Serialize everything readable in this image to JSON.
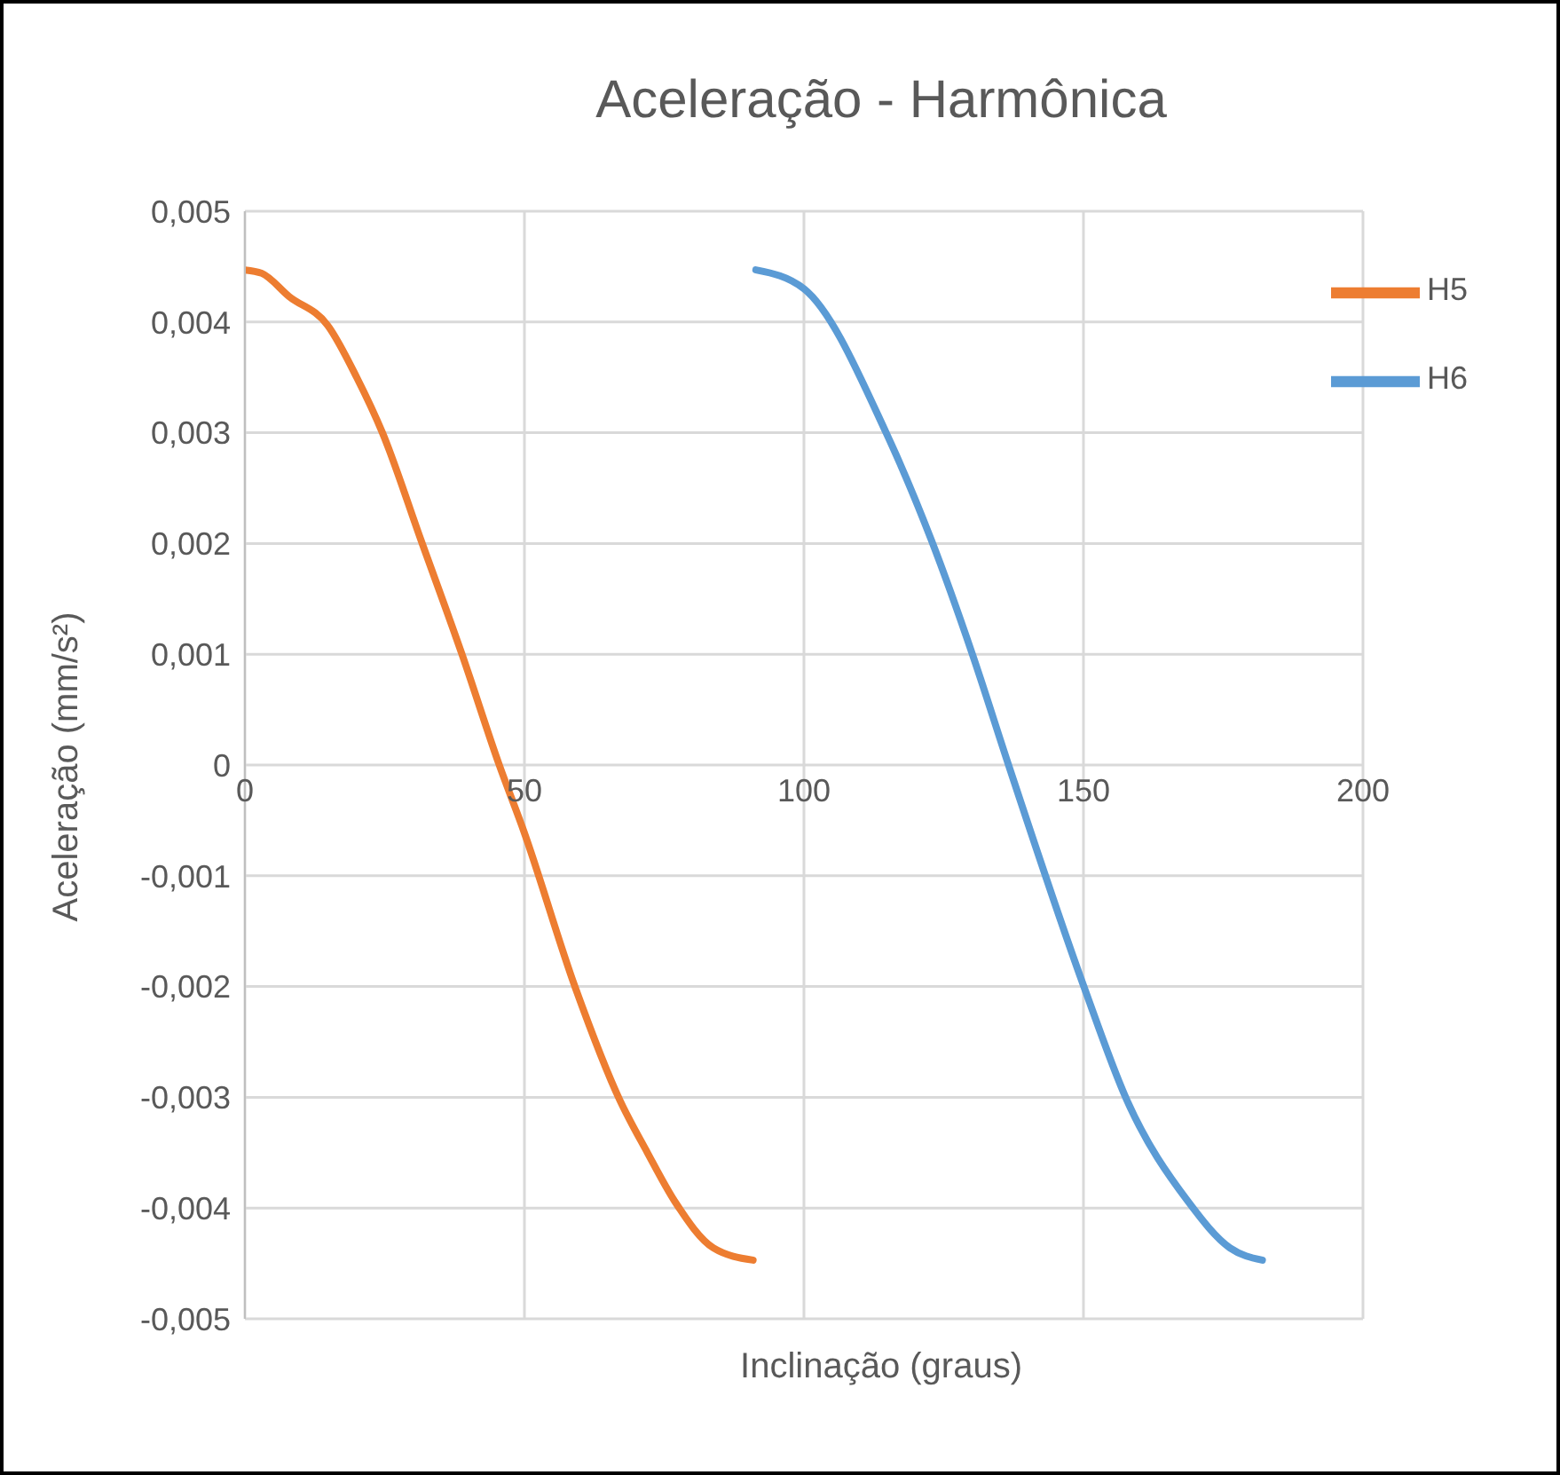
{
  "chart_data": {
    "type": "line",
    "title": "Aceleração - Harmônica",
    "xlabel": "Inclinação (graus)",
    "ylabel": "Aceleração (mm/s²)",
    "xlim": [
      0,
      200
    ],
    "xticks": [
      0,
      50,
      100,
      150,
      200
    ],
    "ylim": [
      -0.005,
      0.005
    ],
    "yticks": [
      {
        "value": -0.005,
        "label": "-0,005"
      },
      {
        "value": -0.004,
        "label": "-0,004"
      },
      {
        "value": -0.003,
        "label": "-0,003"
      },
      {
        "value": -0.002,
        "label": "-0,002"
      },
      {
        "value": -0.001,
        "label": "-0,001"
      },
      {
        "value": 0,
        "label": "0"
      },
      {
        "value": 0.001,
        "label": "0,001"
      },
      {
        "value": 0.002,
        "label": "0,002"
      },
      {
        "value": 0.003,
        "label": "0,003"
      },
      {
        "value": 0.004,
        "label": "0,004"
      },
      {
        "value": 0.005,
        "label": "0,005"
      }
    ],
    "grid": true,
    "legend": "top right",
    "marker": "none",
    "line_style": "solid",
    "series": [
      {
        "name": "H5",
        "color": "#ed7d31",
        "x": [
          0,
          3,
          7.9,
          14.8,
          20,
          24.6,
          31.5,
          38.9,
          45.5,
          49.9,
          59.1,
          67.1,
          72,
          76.9,
          83.8,
          90.9
        ],
        "values": [
          0.00447,
          0.00444,
          0.00423,
          0.00397,
          0.0035,
          0.003,
          0.00203,
          0.00099,
          0,
          -0.0006,
          -0.00201,
          -0.00303,
          -0.0035,
          -0.00394,
          -0.00436,
          -0.00447
        ]
      },
      {
        "name": "H6",
        "color": "#5b9bd5",
        "x": [
          91.4,
          100,
          114.7,
          122.8,
          130.2,
          136.6,
          150,
          157.8,
          168.7,
          176.2,
          182
        ],
        "values": [
          0.00447,
          0.0043,
          0.003,
          0.00203,
          0.00099,
          0,
          -0.00199,
          -0.00303,
          -0.00394,
          -0.00436,
          -0.00447
        ]
      }
    ]
  }
}
